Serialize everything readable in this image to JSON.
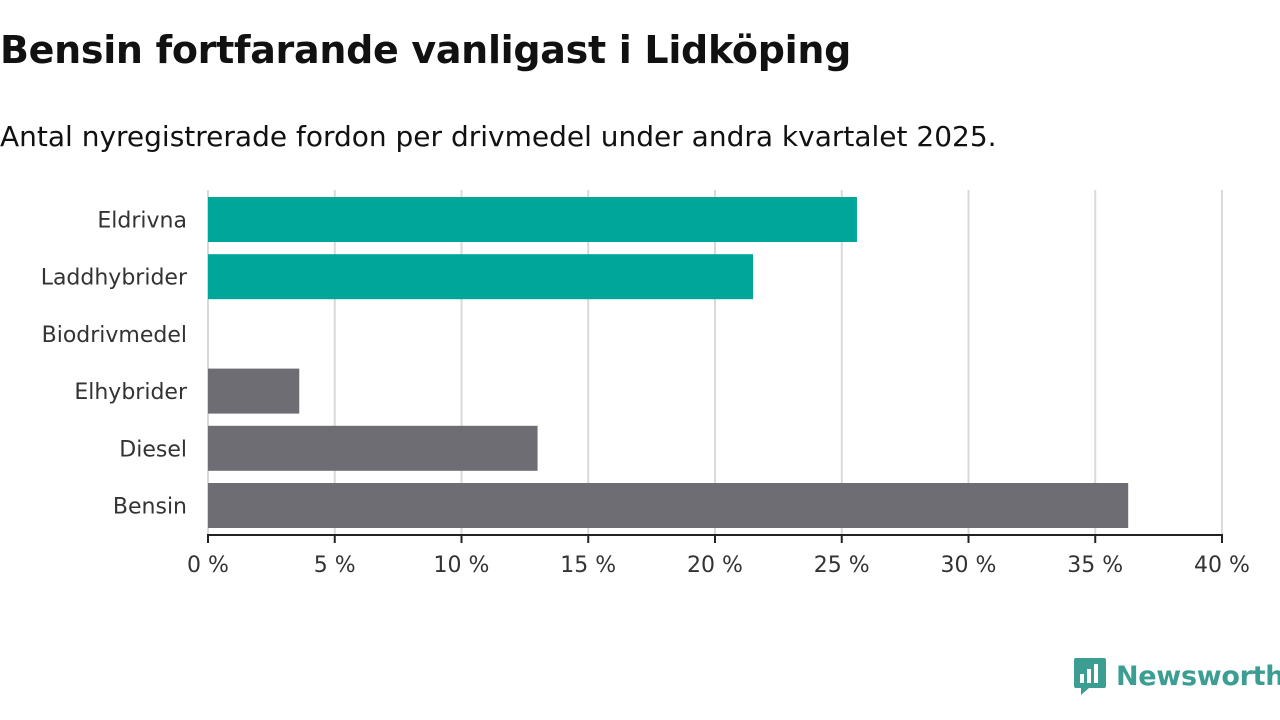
{
  "title": "Bensin fortfarande vanligast i Lidköping",
  "subtitle": "Antal nyregistrerade fordon per drivmedel under andra kvartalet 2025.",
  "brand": {
    "name": "Newsworthy",
    "icon": "newsworthy-logo-icon",
    "color": "#3c9e92"
  },
  "chart_data": {
    "type": "bar",
    "orientation": "horizontal",
    "categories": [
      "Eldrivna",
      "Laddhybrider",
      "Biodrivmedel",
      "Elhybrider",
      "Diesel",
      "Bensin"
    ],
    "values": [
      25.6,
      21.5,
      0,
      3.6,
      13.0,
      36.3
    ],
    "colors": [
      "#00a69a",
      "#00a69a",
      "#00a69a",
      "#6e6d73",
      "#6e6d73",
      "#6e6d73"
    ],
    "xlim": [
      0,
      40
    ],
    "xticks": [
      0,
      5,
      10,
      15,
      20,
      25,
      30,
      35,
      40
    ],
    "xtick_labels": [
      "0 %",
      "5 %",
      "10 %",
      "15 %",
      "20 %",
      "25 %",
      "30 %",
      "35 %",
      "40 %"
    ],
    "grid": true,
    "title": "Bensin fortfarande vanligast i Lidköping",
    "xlabel": "",
    "ylabel": ""
  }
}
